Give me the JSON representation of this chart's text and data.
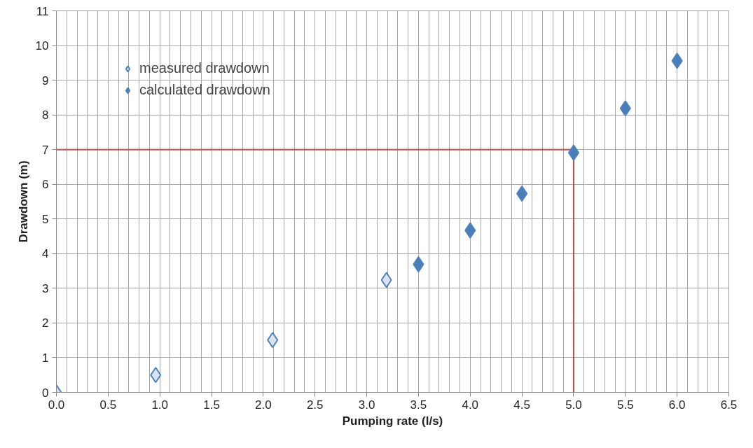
{
  "chart_data": {
    "type": "scatter",
    "xlabel": "Pumping rate (l/s)",
    "ylabel": "Drawdown (m)",
    "marker": "diamond",
    "grid": true,
    "legend": "top left",
    "xlim": [
      0,
      6.5
    ],
    "xticks": [
      {
        "value": 0,
        "label": "0.0"
      },
      0.5,
      {
        "value": 1,
        "label": "1.0"
      },
      1.5,
      {
        "value": 2,
        "label": "2.0"
      },
      2.5,
      {
        "value": 3,
        "label": "3.0"
      },
      3.5,
      {
        "value": 4,
        "label": "4.0"
      },
      4.5,
      {
        "value": 5,
        "label": "5.0"
      },
      5.5,
      {
        "value": 6,
        "label": "6.0"
      },
      6.5
    ],
    "ylim": [
      0,
      11
    ],
    "yticks": [
      0,
      1,
      2,
      3,
      4,
      5,
      6,
      7,
      8,
      9,
      10,
      11
    ],
    "series": [
      {
        "name": "measured drawdown",
        "color": "#dbe5f1",
        "x": [
          0,
          0.96,
          2.09,
          3.19
        ],
        "values": [
          0,
          0.5,
          1.51,
          3.24
        ]
      },
      {
        "name": "calculated drawdown",
        "color": "#4a7ebb",
        "x": [
          3.5,
          4.0,
          4.5,
          5.0,
          5.5,
          6.0
        ],
        "values": [
          3.69,
          4.67,
          5.73,
          6.91,
          8.19,
          9.56
        ]
      }
    ],
    "ref_lines": [
      {
        "axis": "y",
        "value": 7,
        "color": "#c0504d"
      },
      {
        "axis": "x",
        "value": 5,
        "color": "#c0504d"
      }
    ]
  }
}
